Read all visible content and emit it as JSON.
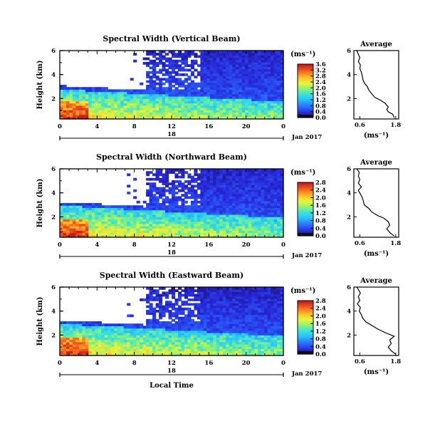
{
  "chart_data": [
    {
      "type": "heatmap",
      "title": "Spectral Width (Vertical Beam)",
      "ylabel": "Height (km)",
      "y_ticks": [
        "2",
        "4",
        "6"
      ],
      "x_ticks": [
        "0",
        "4",
        "8",
        "12",
        "16",
        "20",
        "0"
      ],
      "date_day": "18",
      "date_month": "Jan 2017",
      "colorbar": {
        "unit": "(ms⁻¹)",
        "ticks": [
          "0.0",
          "0.4",
          "0.8",
          "1.2",
          "1.6",
          "2.0",
          "2.4",
          "2.8",
          "3.2",
          "3.6"
        ],
        "range": [
          0.0,
          3.6
        ]
      },
      "average": {
        "title": "Average",
        "xlabel": "(ms⁻¹)",
        "x_ticks": [
          "0.6",
          "1.8"
        ],
        "y_ticks": [
          "2",
          "4",
          "6"
        ],
        "profile": [
          [
            1.75,
            0.4
          ],
          [
            1.7,
            0.7
          ],
          [
            1.55,
            0.9
          ],
          [
            1.5,
            1.1
          ],
          [
            1.55,
            1.3
          ],
          [
            1.45,
            1.6
          ],
          [
            1.3,
            1.85
          ],
          [
            1.1,
            2.1
          ],
          [
            1.0,
            2.4
          ],
          [
            0.9,
            2.7
          ],
          [
            0.85,
            3.0
          ],
          [
            0.75,
            3.3
          ],
          [
            0.7,
            3.6
          ],
          [
            0.68,
            3.9
          ],
          [
            0.65,
            4.2
          ],
          [
            0.6,
            4.5
          ],
          [
            0.62,
            4.8
          ],
          [
            0.55,
            5.1
          ],
          [
            0.6,
            5.4
          ],
          [
            0.55,
            5.7
          ],
          [
            0.5,
            6.0
          ]
        ]
      }
    },
    {
      "type": "heatmap",
      "title": "Spectral Width (Northward Beam)",
      "ylabel": "Height (km)",
      "y_ticks": [
        "2",
        "4",
        "6"
      ],
      "x_ticks": [
        "0",
        "4",
        "8",
        "12",
        "16",
        "20",
        "0"
      ],
      "date_day": "18",
      "date_month": "Jan 2017",
      "colorbar": {
        "unit": "(ms⁻¹)",
        "ticks": [
          "0.0",
          "0.4",
          "0.8",
          "1.2",
          "1.6",
          "2.0",
          "2.4",
          "2.8"
        ],
        "range": [
          0.0,
          2.8
        ]
      },
      "average": {
        "title": "Average",
        "xlabel": "(ms⁻¹)",
        "x_ticks": [
          "0.6",
          "1.8"
        ],
        "y_ticks": [
          "2",
          "4",
          "6"
        ],
        "profile": [
          [
            1.75,
            0.4
          ],
          [
            1.6,
            0.7
          ],
          [
            1.5,
            1.0
          ],
          [
            1.6,
            1.3
          ],
          [
            1.55,
            1.6
          ],
          [
            1.4,
            1.9
          ],
          [
            1.2,
            2.1
          ],
          [
            1.0,
            2.4
          ],
          [
            0.9,
            2.7
          ],
          [
            0.75,
            3.0
          ],
          [
            0.72,
            3.3
          ],
          [
            0.68,
            3.6
          ],
          [
            0.62,
            3.9
          ],
          [
            0.55,
            4.2
          ],
          [
            0.65,
            4.5
          ],
          [
            0.55,
            4.8
          ],
          [
            0.6,
            5.1
          ],
          [
            0.55,
            5.4
          ],
          [
            0.58,
            5.7
          ],
          [
            0.5,
            6.0
          ]
        ]
      }
    },
    {
      "type": "heatmap",
      "title": "Spectral Width (Eastward Beam)",
      "ylabel": "Height (km)",
      "y_ticks": [
        "2",
        "4",
        "6"
      ],
      "x_ticks": [
        "0",
        "4",
        "8",
        "12",
        "16",
        "20",
        "0"
      ],
      "date_day": "18",
      "date_month": "Jan 2017",
      "xlabel": "Local Time",
      "colorbar": {
        "unit": "(ms⁻¹)",
        "ticks": [
          "0.0",
          "0.4",
          "0.8",
          "1.2",
          "1.6",
          "2.0",
          "2.4",
          "2.8"
        ],
        "range": [
          0.0,
          2.8
        ]
      },
      "average": {
        "title": "Average",
        "xlabel": "(ms⁻¹)",
        "x_ticks": [
          "0.6",
          "1.8"
        ],
        "y_ticks": [
          "2",
          "4",
          "6"
        ],
        "profile": [
          [
            1.8,
            0.4
          ],
          [
            1.65,
            0.7
          ],
          [
            1.55,
            1.0
          ],
          [
            1.65,
            1.3
          ],
          [
            1.6,
            1.6
          ],
          [
            1.75,
            1.9
          ],
          [
            1.45,
            2.2
          ],
          [
            1.2,
            2.5
          ],
          [
            1.0,
            2.8
          ],
          [
            0.8,
            3.1
          ],
          [
            0.7,
            3.4
          ],
          [
            0.65,
            3.7
          ],
          [
            0.58,
            4.0
          ],
          [
            0.62,
            4.3
          ],
          [
            0.52,
            4.6
          ],
          [
            0.6,
            4.9
          ],
          [
            0.55,
            5.2
          ],
          [
            0.62,
            5.5
          ],
          [
            0.55,
            5.8
          ],
          [
            0.5,
            6.0
          ]
        ]
      }
    }
  ]
}
